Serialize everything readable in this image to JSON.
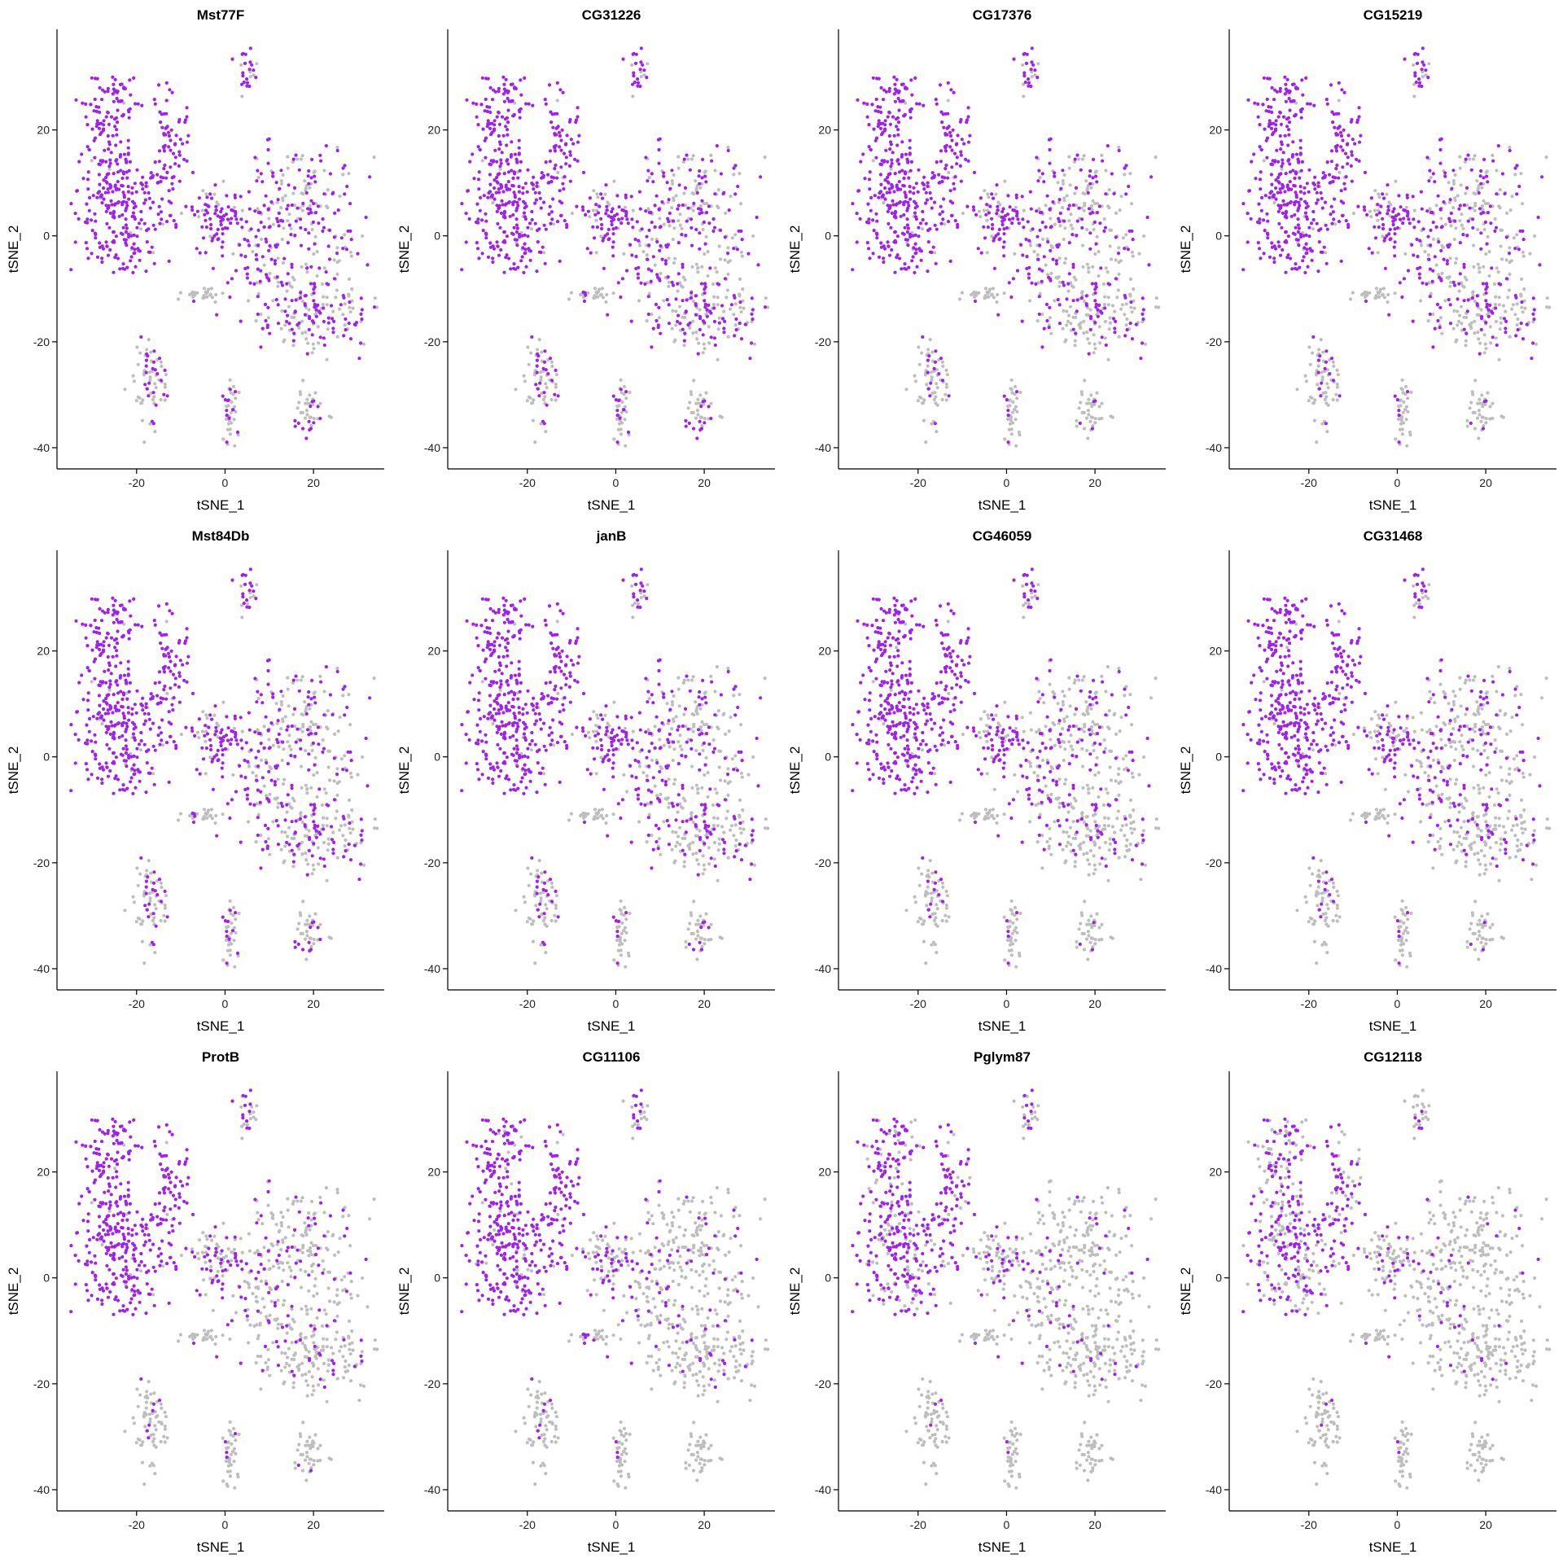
{
  "figure": {
    "cols": 4,
    "colors": {
      "low": "#BEBEBE",
      "high": "#A020F0"
    }
  },
  "chart_data": [
    {
      "type": "scatter",
      "title": "Mst77F",
      "xlabel": "tSNE_1",
      "ylabel": "tSNE_2",
      "xlim": [
        -38,
        36
      ],
      "ylim": [
        -44,
        39
      ],
      "xticks": [
        -20,
        0,
        20
      ],
      "yticks": [
        -40,
        -20,
        0,
        20
      ],
      "grid": false,
      "expression": {
        "c1": 0.97,
        "c2": 0.85,
        "c3": 0.55,
        "c4": 0.5,
        "tail": 0.15,
        "bottom": 0.3
      }
    },
    {
      "type": "scatter",
      "title": "CG31226",
      "xlabel": "tSNE_1",
      "ylabel": "tSNE_2",
      "xlim": [
        -38,
        36
      ],
      "ylim": [
        -44,
        39
      ],
      "xticks": [
        -20,
        0,
        20
      ],
      "yticks": [
        -40,
        -20,
        0,
        20
      ],
      "grid": false,
      "expression": {
        "c1": 0.96,
        "c2": 0.82,
        "c3": 0.5,
        "c4": 0.45,
        "tail": 0.2,
        "bottom": 0.3
      }
    },
    {
      "type": "scatter",
      "title": "CG17376",
      "xlabel": "tSNE_1",
      "ylabel": "tSNE_2",
      "xlim": [
        -38,
        36
      ],
      "ylim": [
        -44,
        39
      ],
      "xticks": [
        -20,
        0,
        20
      ],
      "yticks": [
        -40,
        -20,
        0,
        20
      ],
      "grid": false,
      "expression": {
        "c1": 0.96,
        "c2": 0.8,
        "c3": 0.45,
        "c4": 0.35,
        "tail": 0.15,
        "bottom": 0.15
      }
    },
    {
      "type": "scatter",
      "title": "CG15219",
      "xlabel": "tSNE_1",
      "ylabel": "tSNE_2",
      "xlim": [
        -38,
        36
      ],
      "ylim": [
        -44,
        39
      ],
      "xticks": [
        -20,
        0,
        20
      ],
      "yticks": [
        -40,
        -20,
        0,
        20
      ],
      "grid": false,
      "expression": {
        "c1": 0.96,
        "c2": 0.8,
        "c3": 0.45,
        "c4": 0.35,
        "tail": 0.15,
        "bottom": 0.15
      }
    },
    {
      "type": "scatter",
      "title": "Mst84Db",
      "xlabel": "tSNE_1",
      "ylabel": "tSNE_2",
      "xlim": [
        -38,
        36
      ],
      "ylim": [
        -44,
        39
      ],
      "xticks": [
        -20,
        0,
        20
      ],
      "yticks": [
        -40,
        -20,
        0,
        20
      ],
      "grid": false,
      "expression": {
        "c1": 0.96,
        "c2": 0.78,
        "c3": 0.45,
        "c4": 0.4,
        "tail": 0.2,
        "bottom": 0.25
      }
    },
    {
      "type": "scatter",
      "title": "janB",
      "xlabel": "tSNE_1",
      "ylabel": "tSNE_2",
      "xlim": [
        -38,
        36
      ],
      "ylim": [
        -44,
        39
      ],
      "xticks": [
        -20,
        0,
        20
      ],
      "yticks": [
        -40,
        -20,
        0,
        20
      ],
      "grid": false,
      "expression": {
        "c1": 0.96,
        "c2": 0.75,
        "c3": 0.4,
        "c4": 0.35,
        "tail": 0.15,
        "bottom": 0.2
      }
    },
    {
      "type": "scatter",
      "title": "CG46059",
      "xlabel": "tSNE_1",
      "ylabel": "tSNE_2",
      "xlim": [
        -38,
        36
      ],
      "ylim": [
        -44,
        39
      ],
      "xticks": [
        -20,
        0,
        20
      ],
      "yticks": [
        -40,
        -20,
        0,
        20
      ],
      "grid": false,
      "expression": {
        "c1": 0.95,
        "c2": 0.7,
        "c3": 0.3,
        "c4": 0.25,
        "tail": 0.1,
        "bottom": 0.12
      }
    },
    {
      "type": "scatter",
      "title": "CG31468",
      "xlabel": "tSNE_1",
      "ylabel": "tSNE_2",
      "xlim": [
        -38,
        36
      ],
      "ylim": [
        -44,
        39
      ],
      "xticks": [
        -20,
        0,
        20
      ],
      "yticks": [
        -40,
        -20,
        0,
        20
      ],
      "grid": false,
      "expression": {
        "c1": 0.95,
        "c2": 0.65,
        "c3": 0.3,
        "c4": 0.25,
        "tail": 0.1,
        "bottom": 0.12
      }
    },
    {
      "type": "scatter",
      "title": "ProtB",
      "xlabel": "tSNE_1",
      "ylabel": "tSNE_2",
      "xlim": [
        -38,
        36
      ],
      "ylim": [
        -44,
        39
      ],
      "xticks": [
        -20,
        0,
        20
      ],
      "yticks": [
        -40,
        -20,
        0,
        20
      ],
      "grid": false,
      "expression": {
        "c1": 0.95,
        "c2": 0.55,
        "c3": 0.2,
        "c4": 0.15,
        "tail": 0.05,
        "bottom": 0.1
      }
    },
    {
      "type": "scatter",
      "title": "CG11106",
      "xlabel": "tSNE_1",
      "ylabel": "tSNE_2",
      "xlim": [
        -38,
        36
      ],
      "ylim": [
        -44,
        39
      ],
      "xticks": [
        -20,
        0,
        20
      ],
      "yticks": [
        -40,
        -20,
        0,
        20
      ],
      "grid": false,
      "expression": {
        "c1": 0.9,
        "c2": 0.45,
        "c3": 0.12,
        "c4": 0.1,
        "tail": 0.3,
        "bottom": 0.08
      }
    },
    {
      "type": "scatter",
      "title": "Pglym87",
      "xlabel": "tSNE_1",
      "ylabel": "tSNE_2",
      "xlim": [
        -38,
        36
      ],
      "ylim": [
        -44,
        39
      ],
      "xticks": [
        -20,
        0,
        20
      ],
      "yticks": [
        -40,
        -20,
        0,
        20
      ],
      "grid": false,
      "expression": {
        "c1": 0.72,
        "c2": 0.4,
        "c3": 0.08,
        "c4": 0.05,
        "tail": 0.05,
        "bottom": 0.05
      }
    },
    {
      "type": "scatter",
      "title": "CG12118",
      "xlabel": "tSNE_1",
      "ylabel": "tSNE_2",
      "xlim": [
        -38,
        36
      ],
      "ylim": [
        -44,
        39
      ],
      "xticks": [
        -20,
        0,
        20
      ],
      "yticks": [
        -40,
        -20,
        0,
        20
      ],
      "grid": false,
      "expression": {
        "c1": 0.55,
        "c2": 0.3,
        "c3": 0.05,
        "c4": 0.04,
        "tail": 0.05,
        "bottom": 0.05
      }
    }
  ]
}
